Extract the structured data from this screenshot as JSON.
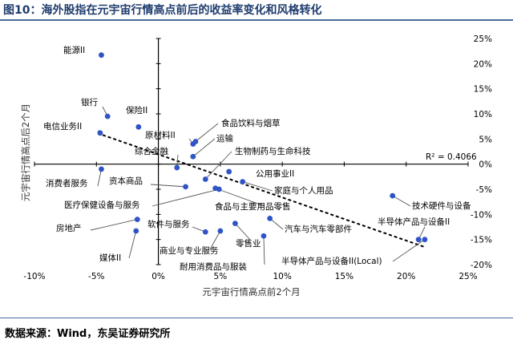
{
  "figure_title": "图10：海外股指在元宇宙行情高点前后的收益率变化和风格转化",
  "source": "数据来源：Wind，东吴证券研究所",
  "colors": {
    "point": "#2f54c6",
    "leader": "#555555",
    "axis": "#000000",
    "trend": "#000000",
    "header_line": "#4a6aa0"
  },
  "chart_data": {
    "type": "scatter",
    "title": "",
    "xlabel": "元宇宙行情高点前2个月",
    "ylabel": "元宇宙行情高点后2个月",
    "xlim": [
      -0.1,
      0.25
    ],
    "ylim": [
      -0.2,
      0.25
    ],
    "xticks": [
      -0.1,
      -0.05,
      0,
      0.05,
      0.1,
      0.15,
      0.2,
      0.25
    ],
    "xtick_labels": [
      "-10%",
      "-5%",
      "0%",
      "5%",
      "10%",
      "15%",
      "20%",
      "25%"
    ],
    "yticks": [
      0.25,
      0.2,
      0.15,
      0.1,
      0.05,
      0,
      -0.05,
      -0.1,
      -0.15,
      -0.2
    ],
    "ytick_labels": [
      "25%",
      "20%",
      "15%",
      "10%",
      "5%",
      "0%",
      "-5%",
      "-10%",
      "-15%",
      "-20%"
    ],
    "grid": false,
    "r_squared_label": "R² = 0.4066",
    "trendline": {
      "x": [
        -0.045,
        0.215
      ],
      "y": [
        0.058,
        -0.165
      ]
    },
    "points": [
      {
        "name": "能源II",
        "x": -0.046,
        "y": 0.217
      },
      {
        "name": "银行",
        "x": -0.041,
        "y": 0.095
      },
      {
        "name": "保险II",
        "x": -0.016,
        "y": 0.074
      },
      {
        "name": "电信业务II",
        "x": -0.047,
        "y": 0.062
      },
      {
        "name": "原材料II",
        "x": 0.028,
        "y": 0.04
      },
      {
        "name": "食品饮料与烟草",
        "x": 0.03,
        "y": 0.045
      },
      {
        "name": "运输",
        "x": 0.028,
        "y": 0.015
      },
      {
        "name": "综合金融",
        "x": 0.015,
        "y": -0.007
      },
      {
        "name": "生物制药与生命科技",
        "x": 0.038,
        "y": -0.03
      },
      {
        "name": "公用事业II",
        "x": 0.057,
        "y": -0.015
      },
      {
        "name": "消费者服务",
        "x": -0.046,
        "y": -0.01
      },
      {
        "name": "资本商品",
        "x": 0.022,
        "y": -0.045
      },
      {
        "name": "医疗保健设备与服务",
        "x": 0.049,
        "y": -0.05
      },
      {
        "name": "家庭与个人用品",
        "x": 0.068,
        "y": -0.035
      },
      {
        "name": "食品与主要用品零售",
        "x": 0.046,
        "y": -0.048
      },
      {
        "name": "技术硬件与设备",
        "x": 0.189,
        "y": -0.063
      },
      {
        "name": "房地产",
        "x": -0.017,
        "y": -0.11
      },
      {
        "name": "软件与服务",
        "x": 0.038,
        "y": -0.135
      },
      {
        "name": "商业与专业服务",
        "x": 0.05,
        "y": -0.133
      },
      {
        "name": "零售业",
        "x": 0.062,
        "y": -0.118
      },
      {
        "name": "汽车与汽车零部件",
        "x": 0.09,
        "y": -0.108
      },
      {
        "name": "媒体II",
        "x": -0.018,
        "y": -0.133
      },
      {
        "name": "耐用消费品与服装",
        "x": 0.085,
        "y": -0.143
      },
      {
        "name": "半导体产品与设备II",
        "x": 0.21,
        "y": -0.15
      },
      {
        "name": "半导体产品与设备II(Local)",
        "x": 0.215,
        "y": -0.15
      }
    ]
  }
}
